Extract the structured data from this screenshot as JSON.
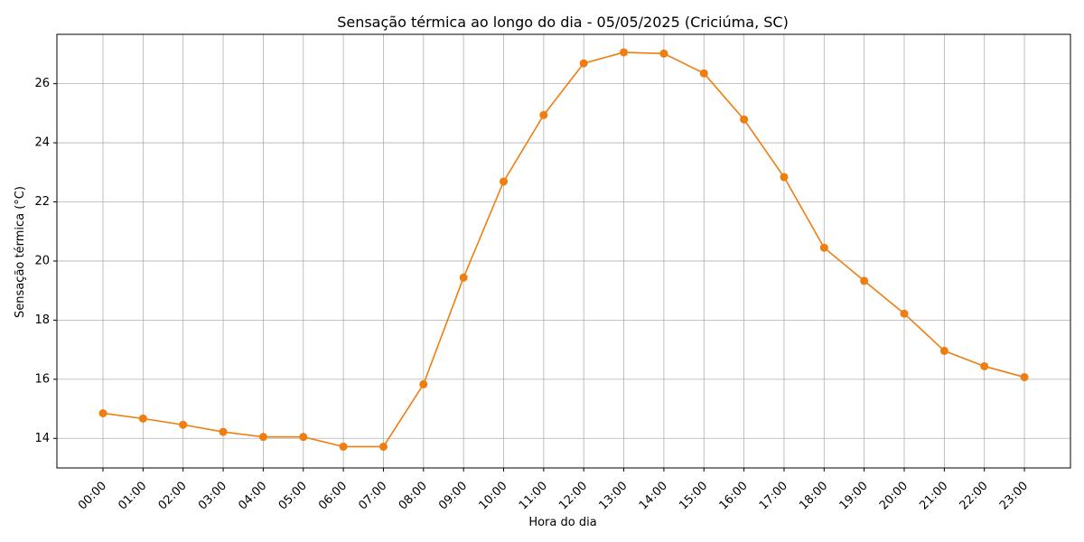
{
  "chart_data": {
    "type": "line",
    "title": "Sensação térmica ao longo do dia - 05/05/2025 (Criciúma, SC)",
    "xlabel": "Hora do dia",
    "ylabel": "Sensação térmica (°C)",
    "categories": [
      "00:00",
      "01:00",
      "02:00",
      "03:00",
      "04:00",
      "05:00",
      "06:00",
      "07:00",
      "08:00",
      "09:00",
      "10:00",
      "11:00",
      "12:00",
      "13:00",
      "14:00",
      "15:00",
      "16:00",
      "17:00",
      "18:00",
      "19:00",
      "20:00",
      "21:00",
      "22:00",
      "23:00"
    ],
    "values": [
      14.85,
      14.67,
      14.46,
      14.22,
      14.05,
      14.05,
      13.72,
      13.72,
      15.83,
      19.44,
      22.69,
      24.94,
      26.69,
      27.06,
      27.02,
      26.35,
      24.79,
      22.84,
      20.45,
      19.33,
      18.22,
      16.96,
      16.44,
      16.07
    ],
    "yticks": [
      14,
      16,
      18,
      20,
      22,
      24,
      26
    ],
    "ylim": [
      13,
      27.67
    ],
    "grid": true,
    "line_color": "#f07d10",
    "grid_color": "#b0b0b0"
  }
}
